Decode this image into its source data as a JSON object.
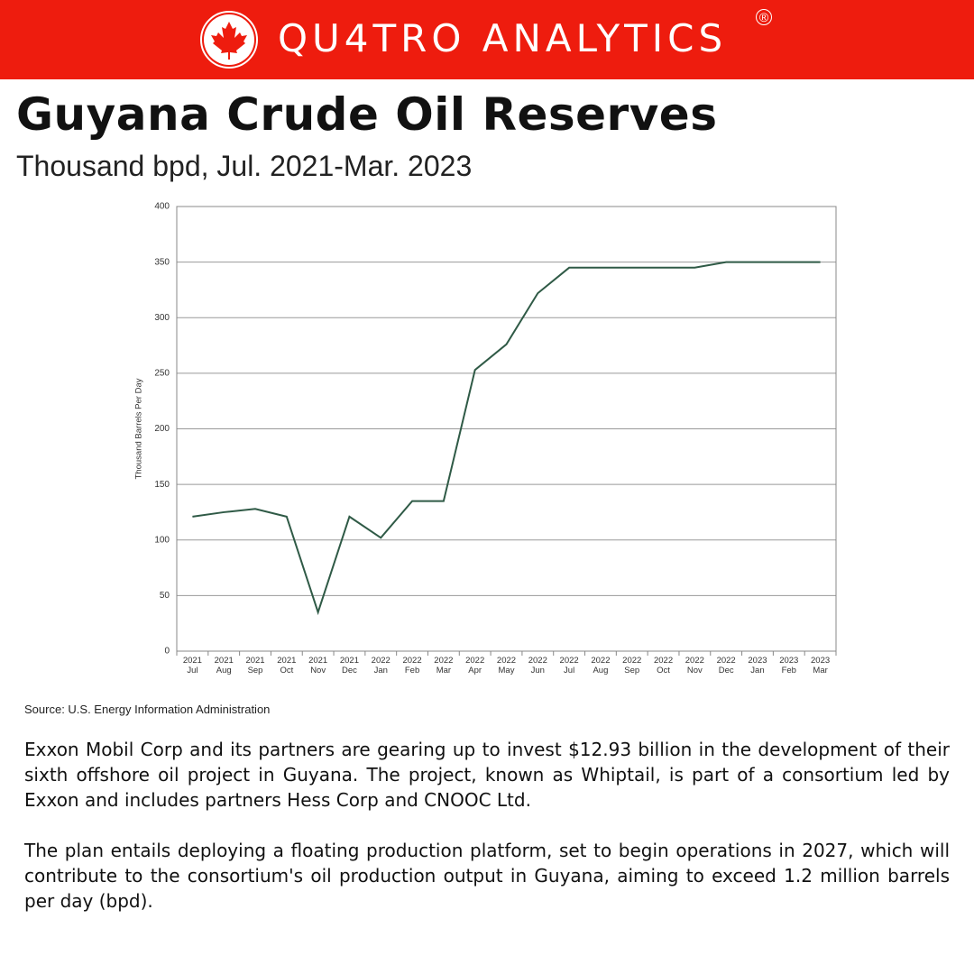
{
  "header": {
    "brand": "QU4TRO ANALYTICS",
    "mark": "®"
  },
  "chart_data": {
    "type": "line",
    "title": "Guyana Crude Oil Reserves",
    "subtitle": "Thousand bpd, Jul. 2021-Mar. 2023",
    "y_label": "Thousand Barrels Per Day",
    "categories": [
      "2021 Jul",
      "2021 Aug",
      "2021 Sep",
      "2021 Oct",
      "2021 Nov",
      "2021 Dec",
      "2022 Jan",
      "2022 Feb",
      "2022 Mar",
      "2022 Apr",
      "2022 May",
      "2022 Jun",
      "2022 Jul",
      "2022 Aug",
      "2022 Sep",
      "2022 Oct",
      "2022 Nov",
      "2022 Dec",
      "2023 Jan",
      "2023 Feb",
      "2023 Mar"
    ],
    "values": [
      121,
      125,
      128,
      121,
      35,
      121,
      102,
      135,
      135,
      253,
      276,
      322,
      345,
      345,
      345,
      345,
      345,
      350,
      350,
      350,
      350
    ],
    "color": "#2f5a46",
    "ylim": [
      0,
      400
    ],
    "yticks": [
      0,
      50,
      100,
      150,
      200,
      250,
      300,
      350,
      400
    ],
    "grid": true
  },
  "source": "Source: U.S. Energy Information Administration",
  "body": [
    "Exxon Mobil Corp and its partners are gearing up to invest $12.93 billion in the development of their sixth offshore oil project in Guyana. The project, known as Whiptail, is part of a consortium led by Exxon and includes partners Hess Corp and CNOOC Ltd.",
    "The plan entails deploying a floating production platform, set to begin operations in 2027, which will contribute to the consortium's oil production output in Guyana, aiming to exceed 1.2 million barrels per day (bpd)."
  ]
}
